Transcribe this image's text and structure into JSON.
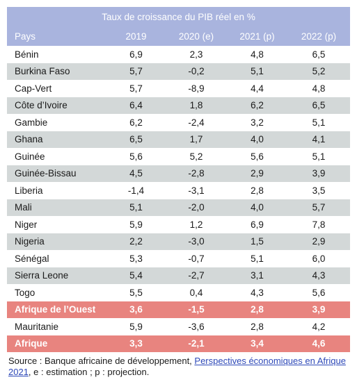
{
  "table": {
    "title": "Taux de croissance du PIB réel en %",
    "headers": [
      "Pays",
      "2019",
      "2020 (e)",
      "2021 (p)",
      "2022 (p)"
    ],
    "rows": [
      {
        "name": "Bénin",
        "values": [
          "6,9",
          "2,3",
          "4,8",
          "6,5"
        ],
        "style": "odd"
      },
      {
        "name": "Burkina Faso",
        "values": [
          "5,7",
          "-0,2",
          "5,1",
          "5,2"
        ],
        "style": "even"
      },
      {
        "name": "Cap-Vert",
        "values": [
          "5,7",
          "-8,9",
          "4,4",
          "4,8"
        ],
        "style": "odd"
      },
      {
        "name": "Côte d’Ivoire",
        "values": [
          "6,4",
          "1,8",
          "6,2",
          "6,5"
        ],
        "style": "even"
      },
      {
        "name": "Gambie",
        "values": [
          "6,2",
          "-2,4",
          "3,2",
          "5,1"
        ],
        "style": "odd"
      },
      {
        "name": "Ghana",
        "values": [
          "6,5",
          "1,7",
          "4,0",
          "4,1"
        ],
        "style": "even"
      },
      {
        "name": "Guinée",
        "values": [
          "5,6",
          "5,2",
          "5,6",
          "5,1"
        ],
        "style": "odd"
      },
      {
        "name": "Guinée-Bissau",
        "values": [
          "4,5",
          "-2,8",
          "2,9",
          "3,9"
        ],
        "style": "even"
      },
      {
        "name": "Liberia",
        "values": [
          "-1,4",
          "-3,1",
          "2,8",
          "3,5"
        ],
        "style": "odd"
      },
      {
        "name": "Mali",
        "values": [
          "5,1",
          "-2,0",
          "4,0",
          "5,7"
        ],
        "style": "even"
      },
      {
        "name": "Niger",
        "values": [
          "5,9",
          "1,2",
          "6,9",
          "7,8"
        ],
        "style": "odd"
      },
      {
        "name": "Nigeria",
        "values": [
          "2,2",
          "-3,0",
          "1,5",
          "2,9"
        ],
        "style": "even"
      },
      {
        "name": "Sénégal",
        "values": [
          "5,3",
          "-0,7",
          "5,1",
          "6,0"
        ],
        "style": "odd"
      },
      {
        "name": "Sierra Leone",
        "values": [
          "5,4",
          "-2,7",
          "3,1",
          "4,3"
        ],
        "style": "even"
      },
      {
        "name": "Togo",
        "values": [
          "5,5",
          "0,4",
          "4,3",
          "5,6"
        ],
        "style": "odd"
      },
      {
        "name": "Afrique de l’Ouest",
        "values": [
          "3,6",
          "-1,5",
          "2,8",
          "3,9"
        ],
        "style": "highlight"
      },
      {
        "name": "Mauritanie",
        "values": [
          "5,9",
          "-3,6",
          "2,8",
          "4,2"
        ],
        "style": "odd"
      },
      {
        "name": "Afrique",
        "values": [
          "3,3",
          "-2,1",
          "3,4",
          "4,6"
        ],
        "style": "highlight"
      }
    ]
  },
  "source": {
    "prefix": "Source : Banque africaine de développement, ",
    "link_text": "Perspectives économiques en Afrique 2021",
    "suffix": ", e : estimation ; p : projection."
  },
  "colors": {
    "header_bg": "#a9b4de",
    "stripe": "#d3d8d8",
    "highlight": "#e8847f",
    "link": "#2e49b8"
  }
}
